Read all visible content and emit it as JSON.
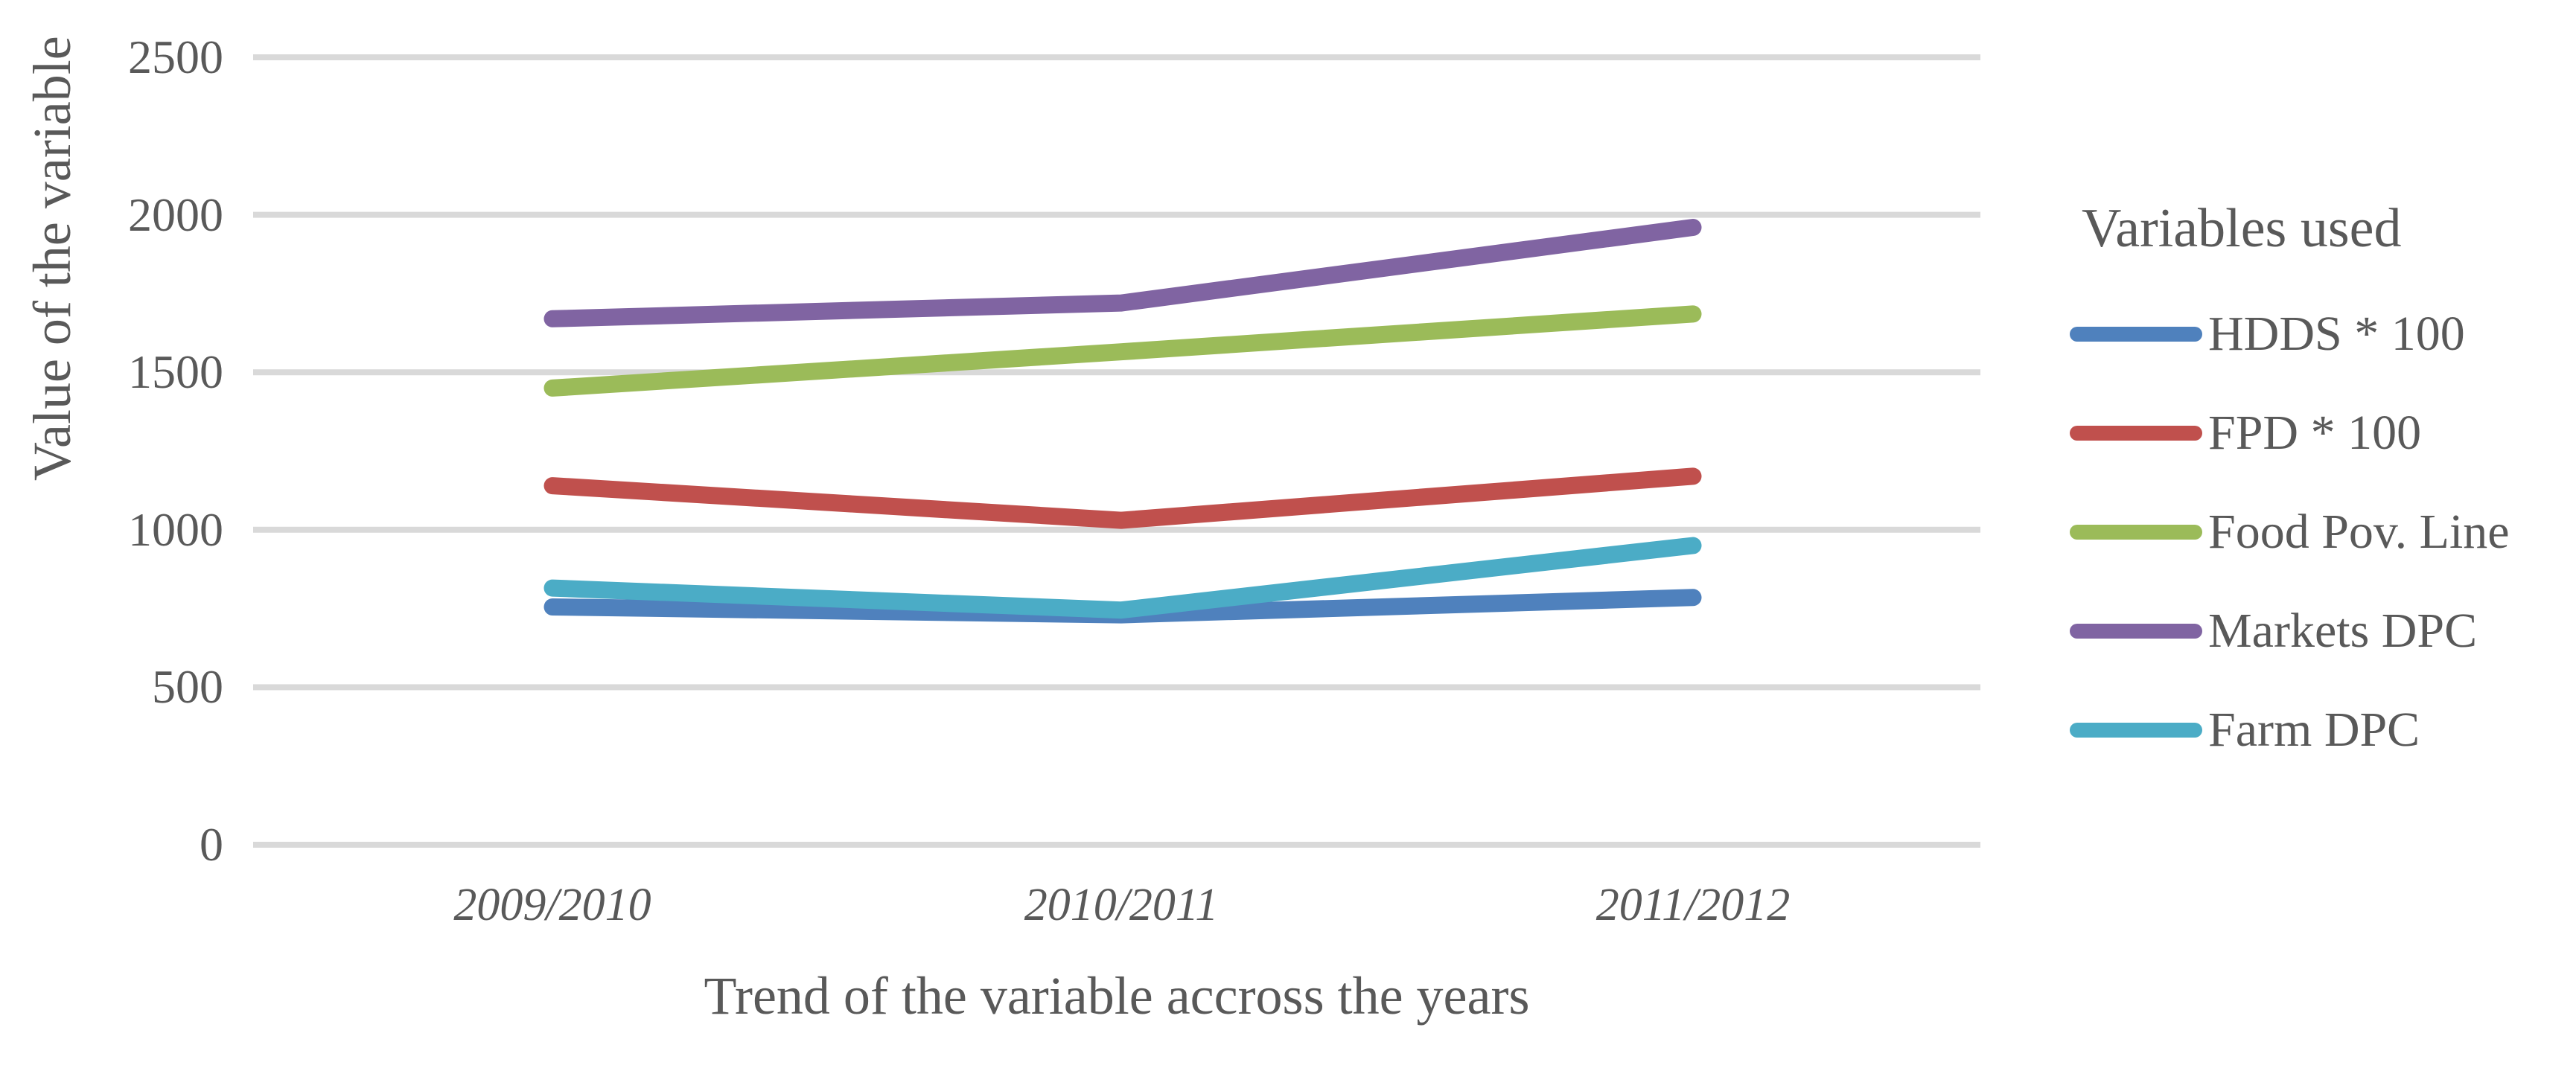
{
  "chart_data": {
    "type": "line",
    "categories": [
      "2009/2010",
      "2010/2011",
      "2011/2012"
    ],
    "series": [
      {
        "name": "HDDS * 100",
        "color": "#4F81BD",
        "values": [
          755,
          730,
          785
        ]
      },
      {
        "name": "FPD * 100",
        "color": "#C0504D",
        "values": [
          1140,
          1030,
          1170
        ]
      },
      {
        "name": "Food Pov. Line",
        "color": "#9BBB59",
        "values": [
          1450,
          1565,
          1685
        ]
      },
      {
        "name": "Markets DPC",
        "color": "#8064A2",
        "values": [
          1670,
          1720,
          1960
        ]
      },
      {
        "name": "Farm DPC",
        "color": "#4BACC6",
        "values": [
          815,
          745,
          950
        ]
      }
    ],
    "xlabel": "Trend of the variable accross the years",
    "ylabel": "Value of the variable",
    "ylim": [
      0,
      2500
    ],
    "yticks": [
      0,
      500,
      1000,
      1500,
      2000,
      2500
    ],
    "legend_title": "Variables used",
    "legend_position": "right",
    "grid": "horizontal-only",
    "gridline_color": "#D9D9D9",
    "text_color": "#595959",
    "background_color": "#FFFFFF"
  }
}
